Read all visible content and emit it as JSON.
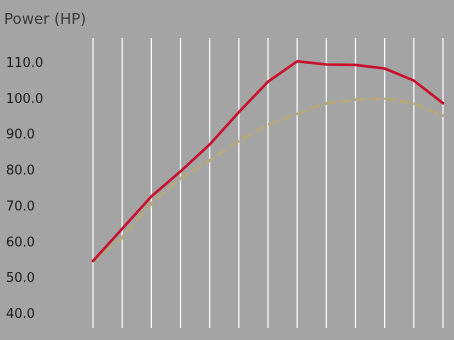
{
  "chart_data": {
    "type": "line",
    "ylabel": "Power (HP)",
    "ylim": [
      37,
      117
    ],
    "yticks": [
      "110.0",
      "100.0",
      "90.0",
      "80.0",
      "70.0",
      "60.0",
      "50.0",
      "40.0"
    ],
    "ytick_values": [
      110,
      100,
      90,
      80,
      70,
      60,
      50,
      40
    ],
    "x": [
      0,
      1,
      2,
      3,
      4,
      5,
      6,
      7,
      8,
      9,
      10,
      11,
      12
    ],
    "grid": "vertical",
    "colors": {
      "background": "#a4a4a4",
      "grid": "#ffffff",
      "series1": "#c8102e",
      "series2": "#b3a97c"
    },
    "series": [
      {
        "style": "solid",
        "color": "#c8102e",
        "values": [
          54.5,
          63.5,
          72.5,
          79.5,
          87.0,
          96.0,
          104.5,
          110.2,
          109.3,
          109.2,
          108.2,
          104.8,
          98.5
        ]
      },
      {
        "style": "dashed",
        "color": "#b3a97c",
        "values": [
          54.5,
          61.0,
          70.5,
          77.5,
          82.5,
          88.0,
          92.5,
          95.5,
          98.5,
          99.5,
          99.8,
          98.5,
          95.0
        ]
      }
    ]
  }
}
